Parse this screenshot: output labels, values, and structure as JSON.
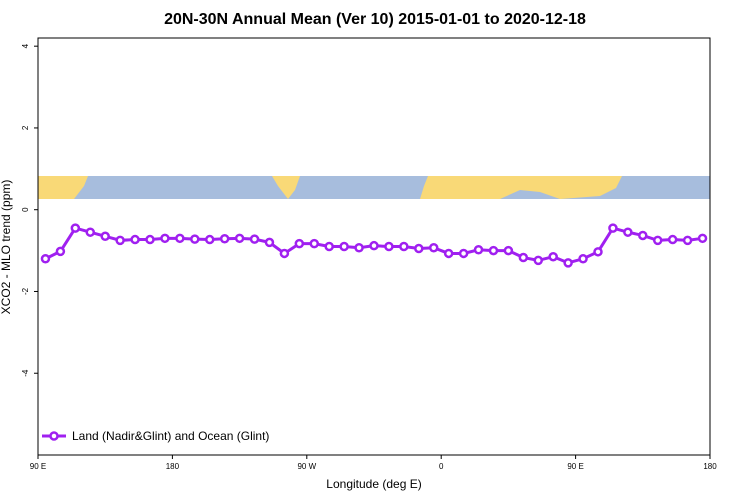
{
  "chart_data": {
    "type": "line",
    "title": "20N-30N Annual Mean (Ver 10)   2015-01-01 to 2020-12-18",
    "x_label": "Longitude (deg E)",
    "y_label": "XCO2 - MLO trend (ppm)",
    "x": [
      95,
      105,
      115,
      125,
      135,
      145,
      155,
      165,
      175,
      185,
      195,
      205,
      215,
      225,
      235,
      245,
      255,
      265,
      275,
      285,
      295,
      305,
      315,
      325,
      335,
      345,
      355,
      365,
      375,
      385,
      395,
      405,
      415,
      425,
      435,
      445,
      455,
      465,
      475,
      485,
      495,
      505,
      515,
      525,
      535
    ],
    "series": [
      {
        "name": "Land (Nadir&Glint) and Ocean (Glint)",
        "color": "#a020f0",
        "values": [
          -1.2,
          -1.02,
          -0.45,
          -0.55,
          -0.65,
          -0.75,
          -0.73,
          -0.73,
          -0.7,
          -0.7,
          -0.72,
          -0.73,
          -0.71,
          -0.7,
          -0.72,
          -0.8,
          -1.07,
          -0.83,
          -0.83,
          -0.9,
          -0.9,
          -0.93,
          -0.88,
          -0.9,
          -0.9,
          -0.95,
          -0.93,
          -1.07,
          -1.07,
          -0.98,
          -1.0,
          -1.0,
          -1.17,
          -1.24,
          -1.15,
          -1.3,
          -1.2,
          -1.03,
          -0.45,
          -0.55,
          -0.63,
          -0.75,
          -0.73,
          -0.75,
          -0.7
        ]
      }
    ],
    "xlim": [
      90,
      540
    ],
    "xticks": [
      {
        "value": 90,
        "label": "90 E"
      },
      180,
      {
        "value": 270,
        "label": "90 W"
      },
      {
        "value": 360,
        "label": "0"
      },
      {
        "value": 450,
        "label": "90 E"
      },
      {
        "value": 540,
        "label": "180"
      }
    ],
    "ylim": [
      -6,
      4.2
    ],
    "yticks": [
      -4,
      -2,
      0,
      2,
      4
    ],
    "legend": "bottom-left"
  }
}
